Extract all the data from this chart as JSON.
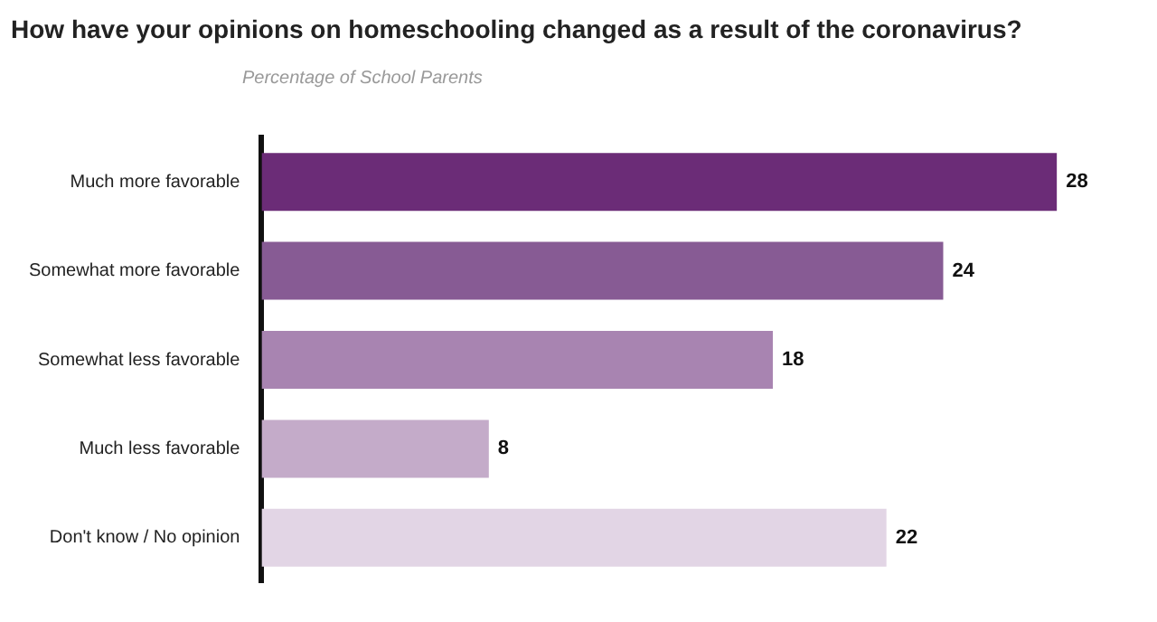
{
  "chart_data": {
    "type": "bar",
    "orientation": "horizontal",
    "title": "How have your opinions on homeschooling changed as a result of the coronavirus?",
    "subtitle": "Percentage of School Parents",
    "categories": [
      "Much more favorable",
      "Somewhat more favorable",
      "Somewhat less favorable",
      "Much less favorable",
      "Don't know / No opinion"
    ],
    "values": [
      28,
      24,
      18,
      8,
      22
    ],
    "colors": [
      "#6b2c77",
      "#875b94",
      "#a884b1",
      "#c4abc9",
      "#e2d5e5"
    ],
    "data_labels": true,
    "legend": false
  }
}
